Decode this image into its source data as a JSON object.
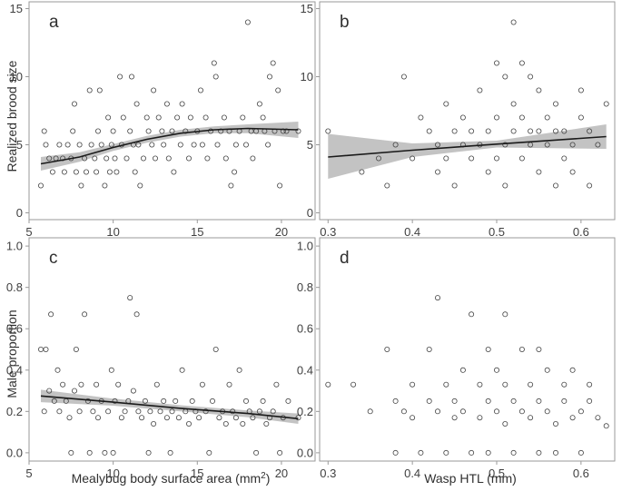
{
  "chart_data": [
    {
      "panel": "a",
      "type": "scatter",
      "xlabel": "",
      "ylabel": "Realized brood size",
      "xlim": [
        5,
        22
      ],
      "ylim": [
        -0.5,
        15.5
      ],
      "xticks": [
        5,
        10,
        15,
        20
      ],
      "yticks": [
        0,
        5,
        10,
        15
      ],
      "points": [
        [
          5.7,
          2
        ],
        [
          5.9,
          6
        ],
        [
          6.0,
          5
        ],
        [
          6.2,
          4
        ],
        [
          6.4,
          3
        ],
        [
          6.6,
          4
        ],
        [
          6.8,
          5
        ],
        [
          7.0,
          4
        ],
        [
          7.1,
          3
        ],
        [
          7.3,
          5
        ],
        [
          7.5,
          4
        ],
        [
          7.6,
          6
        ],
        [
          7.7,
          8
        ],
        [
          7.8,
          3
        ],
        [
          8.0,
          5
        ],
        [
          8.1,
          2
        ],
        [
          8.3,
          4
        ],
        [
          8.4,
          3
        ],
        [
          8.6,
          9
        ],
        [
          8.7,
          5
        ],
        [
          8.9,
          4
        ],
        [
          9.0,
          3
        ],
        [
          9.1,
          6
        ],
        [
          9.2,
          9
        ],
        [
          9.3,
          5
        ],
        [
          9.5,
          2
        ],
        [
          9.6,
          4
        ],
        [
          9.7,
          7
        ],
        [
          9.8,
          3
        ],
        [
          9.9,
          5
        ],
        [
          10.0,
          6
        ],
        [
          10.1,
          4
        ],
        [
          10.2,
          3
        ],
        [
          10.4,
          10
        ],
        [
          10.5,
          5
        ],
        [
          10.6,
          7
        ],
        [
          10.8,
          4
        ],
        [
          11.0,
          6
        ],
        [
          11.1,
          10
        ],
        [
          11.2,
          5
        ],
        [
          11.3,
          3
        ],
        [
          11.4,
          8
        ],
        [
          11.5,
          5
        ],
        [
          11.6,
          2
        ],
        [
          11.8,
          4
        ],
        [
          12.0,
          7
        ],
        [
          12.1,
          6
        ],
        [
          12.3,
          5
        ],
        [
          12.4,
          9
        ],
        [
          12.5,
          4
        ],
        [
          12.7,
          7
        ],
        [
          12.9,
          6
        ],
        [
          13.0,
          5
        ],
        [
          13.2,
          8
        ],
        [
          13.3,
          4
        ],
        [
          13.5,
          6
        ],
        [
          13.6,
          3
        ],
        [
          13.8,
          7
        ],
        [
          14.0,
          5
        ],
        [
          14.1,
          8
        ],
        [
          14.3,
          6
        ],
        [
          14.5,
          4
        ],
        [
          14.6,
          7
        ],
        [
          14.8,
          5
        ],
        [
          15.0,
          6
        ],
        [
          15.2,
          9
        ],
        [
          15.3,
          5
        ],
        [
          15.5,
          7
        ],
        [
          15.6,
          4
        ],
        [
          15.8,
          6
        ],
        [
          16.0,
          11
        ],
        [
          16.1,
          10
        ],
        [
          16.2,
          5
        ],
        [
          16.4,
          6
        ],
        [
          16.6,
          7
        ],
        [
          16.7,
          4
        ],
        [
          16.9,
          6
        ],
        [
          17.0,
          2
        ],
        [
          17.2,
          3
        ],
        [
          17.3,
          5
        ],
        [
          17.5,
          6
        ],
        [
          17.7,
          7
        ],
        [
          17.9,
          5
        ],
        [
          18.0,
          14
        ],
        [
          18.2,
          6
        ],
        [
          18.3,
          4
        ],
        [
          18.5,
          6
        ],
        [
          18.7,
          8
        ],
        [
          18.9,
          7
        ],
        [
          19.0,
          6
        ],
        [
          19.2,
          5
        ],
        [
          19.3,
          10
        ],
        [
          19.5,
          11
        ],
        [
          19.6,
          6
        ],
        [
          19.8,
          9
        ],
        [
          19.9,
          2
        ],
        [
          20.1,
          6
        ],
        [
          20.3,
          6
        ],
        [
          21.0,
          6
        ]
      ],
      "trend": [
        [
          5.7,
          3.6
        ],
        [
          8,
          4.1
        ],
        [
          10,
          4.8
        ],
        [
          12,
          5.4
        ],
        [
          14,
          5.85
        ],
        [
          16,
          6.1
        ],
        [
          18,
          6.2
        ],
        [
          21,
          6.1
        ]
      ],
      "ci_upper": [
        [
          5.7,
          4.1
        ],
        [
          8,
          4.45
        ],
        [
          10,
          5.05
        ],
        [
          12,
          5.65
        ],
        [
          14,
          6.1
        ],
        [
          16,
          6.35
        ],
        [
          18,
          6.5
        ],
        [
          21,
          6.7
        ]
      ],
      "ci_lower": [
        [
          5.7,
          3.1
        ],
        [
          8,
          3.75
        ],
        [
          10,
          4.55
        ],
        [
          12,
          5.15
        ],
        [
          14,
          5.6
        ],
        [
          16,
          5.85
        ],
        [
          18,
          5.85
        ],
        [
          21,
          5.5
        ]
      ]
    },
    {
      "panel": "b",
      "type": "scatter",
      "xlabel": "",
      "ylabel": "",
      "xlim": [
        0.29,
        0.64
      ],
      "ylim": [
        -0.5,
        15.5
      ],
      "xticks": [
        0.3,
        0.4,
        0.5,
        0.6
      ],
      "yticks": [
        0,
        5,
        10,
        15
      ],
      "points": [
        [
          0.3,
          6
        ],
        [
          0.34,
          3
        ],
        [
          0.36,
          4
        ],
        [
          0.37,
          2
        ],
        [
          0.38,
          5
        ],
        [
          0.39,
          10
        ],
        [
          0.4,
          4
        ],
        [
          0.41,
          7
        ],
        [
          0.42,
          6
        ],
        [
          0.43,
          5
        ],
        [
          0.43,
          3
        ],
        [
          0.44,
          8
        ],
        [
          0.44,
          4
        ],
        [
          0.45,
          6
        ],
        [
          0.45,
          2
        ],
        [
          0.46,
          7
        ],
        [
          0.46,
          5
        ],
        [
          0.47,
          4
        ],
        [
          0.47,
          6
        ],
        [
          0.48,
          5
        ],
        [
          0.48,
          9
        ],
        [
          0.49,
          3
        ],
        [
          0.49,
          6
        ],
        [
          0.5,
          7
        ],
        [
          0.5,
          4
        ],
        [
          0.5,
          11
        ],
        [
          0.51,
          5
        ],
        [
          0.51,
          2
        ],
        [
          0.51,
          10
        ],
        [
          0.52,
          6
        ],
        [
          0.52,
          14
        ],
        [
          0.52,
          8
        ],
        [
          0.53,
          4
        ],
        [
          0.53,
          7
        ],
        [
          0.53,
          11
        ],
        [
          0.54,
          5
        ],
        [
          0.54,
          6
        ],
        [
          0.54,
          10
        ],
        [
          0.55,
          3
        ],
        [
          0.55,
          9
        ],
        [
          0.55,
          6
        ],
        [
          0.56,
          7
        ],
        [
          0.56,
          5
        ],
        [
          0.57,
          2
        ],
        [
          0.57,
          6
        ],
        [
          0.57,
          8
        ],
        [
          0.58,
          4
        ],
        [
          0.58,
          6
        ],
        [
          0.59,
          5
        ],
        [
          0.59,
          3
        ],
        [
          0.6,
          7
        ],
        [
          0.6,
          9
        ],
        [
          0.61,
          6
        ],
        [
          0.61,
          2
        ],
        [
          0.62,
          5
        ],
        [
          0.63,
          8
        ]
      ],
      "trend": [
        [
          0.3,
          4.1
        ],
        [
          0.4,
          4.6
        ],
        [
          0.5,
          5.05
        ],
        [
          0.63,
          5.6
        ]
      ],
      "ci_upper": [
        [
          0.3,
          5.8
        ],
        [
          0.4,
          5.1
        ],
        [
          0.5,
          5.3
        ],
        [
          0.63,
          6.5
        ]
      ],
      "ci_lower": [
        [
          0.3,
          2.5
        ],
        [
          0.4,
          4.1
        ],
        [
          0.5,
          4.8
        ],
        [
          0.63,
          4.7
        ]
      ]
    },
    {
      "panel": "c",
      "type": "scatter",
      "xlabel": "Mealybug body surface area (mm",
      "xlabel_sup": "2",
      "xlabel_end": ")",
      "ylabel": "Male proportion",
      "xlim": [
        5,
        22
      ],
      "ylim": [
        -0.04,
        1.04
      ],
      "xticks": [
        5,
        10,
        15,
        20
      ],
      "yticks": [
        0.0,
        0.2,
        0.4,
        0.6,
        0.8,
        1.0
      ],
      "points": [
        [
          5.7,
          0.5
        ],
        [
          5.9,
          0.2
        ],
        [
          6.0,
          0.5
        ],
        [
          6.2,
          0.3
        ],
        [
          6.3,
          0.67
        ],
        [
          6.5,
          0.25
        ],
        [
          6.7,
          0.4
        ],
        [
          6.8,
          0.2
        ],
        [
          7.0,
          0.33
        ],
        [
          7.2,
          0.25
        ],
        [
          7.4,
          0.17
        ],
        [
          7.5,
          0.0
        ],
        [
          7.7,
          0.3
        ],
        [
          7.8,
          0.5
        ],
        [
          8.0,
          0.2
        ],
        [
          8.1,
          0.33
        ],
        [
          8.3,
          0.67
        ],
        [
          8.5,
          0.25
        ],
        [
          8.6,
          0.0
        ],
        [
          8.8,
          0.2
        ],
        [
          9.0,
          0.33
        ],
        [
          9.1,
          0.17
        ],
        [
          9.3,
          0.25
        ],
        [
          9.5,
          0.0
        ],
        [
          9.7,
          0.2
        ],
        [
          9.9,
          0.4
        ],
        [
          10.0,
          0.0
        ],
        [
          10.1,
          0.25
        ],
        [
          10.3,
          0.33
        ],
        [
          10.5,
          0.17
        ],
        [
          10.7,
          0.2
        ],
        [
          10.9,
          0.25
        ],
        [
          11.0,
          0.75
        ],
        [
          11.2,
          0.3
        ],
        [
          11.4,
          0.67
        ],
        [
          11.5,
          0.2
        ],
        [
          11.7,
          0.17
        ],
        [
          11.9,
          0.25
        ],
        [
          12.1,
          0.0
        ],
        [
          12.2,
          0.2
        ],
        [
          12.4,
          0.14
        ],
        [
          12.6,
          0.33
        ],
        [
          12.8,
          0.2
        ],
        [
          13.0,
          0.25
        ],
        [
          13.2,
          0.17
        ],
        [
          13.4,
          0.0
        ],
        [
          13.5,
          0.2
        ],
        [
          13.7,
          0.25
        ],
        [
          13.9,
          0.17
        ],
        [
          14.1,
          0.4
        ],
        [
          14.3,
          0.2
        ],
        [
          14.5,
          0.14
        ],
        [
          14.7,
          0.25
        ],
        [
          14.9,
          0.2
        ],
        [
          15.1,
          0.17
        ],
        [
          15.3,
          0.33
        ],
        [
          15.5,
          0.2
        ],
        [
          15.7,
          0.0
        ],
        [
          15.9,
          0.25
        ],
        [
          16.1,
          0.5
        ],
        [
          16.3,
          0.17
        ],
        [
          16.5,
          0.2
        ],
        [
          16.7,
          0.14
        ],
        [
          16.9,
          0.33
        ],
        [
          17.1,
          0.2
        ],
        [
          17.3,
          0.17
        ],
        [
          17.5,
          0.4
        ],
        [
          17.7,
          0.14
        ],
        [
          17.9,
          0.25
        ],
        [
          18.1,
          0.2
        ],
        [
          18.3,
          0.17
        ],
        [
          18.5,
          0.0
        ],
        [
          18.7,
          0.2
        ],
        [
          18.9,
          0.25
        ],
        [
          19.1,
          0.14
        ],
        [
          19.3,
          0.17
        ],
        [
          19.5,
          0.2
        ],
        [
          19.7,
          0.33
        ],
        [
          19.9,
          0.0
        ],
        [
          20.1,
          0.17
        ],
        [
          20.4,
          0.25
        ],
        [
          21.0,
          0.17
        ]
      ],
      "trend": [
        [
          5.7,
          0.275
        ],
        [
          10,
          0.245
        ],
        [
          14,
          0.215
        ],
        [
          18,
          0.19
        ],
        [
          21,
          0.165
        ]
      ],
      "ci_upper": [
        [
          5.7,
          0.305
        ],
        [
          10,
          0.262
        ],
        [
          14,
          0.23
        ],
        [
          18,
          0.205
        ],
        [
          21,
          0.19
        ]
      ],
      "ci_lower": [
        [
          5.7,
          0.245
        ],
        [
          10,
          0.228
        ],
        [
          14,
          0.2
        ],
        [
          18,
          0.172
        ],
        [
          21,
          0.14
        ]
      ]
    },
    {
      "panel": "d",
      "type": "scatter",
      "xlabel": "Wasp HTL (mm)",
      "ylabel": "",
      "xlim": [
        0.29,
        0.64
      ],
      "ylim": [
        -0.04,
        1.04
      ],
      "xticks": [
        0.3,
        0.4,
        0.5,
        0.6
      ],
      "yticks": [
        0.0,
        0.2,
        0.4,
        0.6,
        0.8,
        1.0
      ],
      "points": [
        [
          0.3,
          0.33
        ],
        [
          0.33,
          0.33
        ],
        [
          0.35,
          0.2
        ],
        [
          0.37,
          0.5
        ],
        [
          0.38,
          0.25
        ],
        [
          0.38,
          0.0
        ],
        [
          0.39,
          0.2
        ],
        [
          0.4,
          0.17
        ],
        [
          0.4,
          0.33
        ],
        [
          0.41,
          0.0
        ],
        [
          0.42,
          0.25
        ],
        [
          0.42,
          0.5
        ],
        [
          0.43,
          0.75
        ],
        [
          0.43,
          0.2
        ],
        [
          0.44,
          0.33
        ],
        [
          0.44,
          0.0
        ],
        [
          0.45,
          0.17
        ],
        [
          0.45,
          0.25
        ],
        [
          0.46,
          0.4
        ],
        [
          0.46,
          0.2
        ],
        [
          0.47,
          0.67
        ],
        [
          0.47,
          0.0
        ],
        [
          0.48,
          0.33
        ],
        [
          0.48,
          0.17
        ],
        [
          0.49,
          0.25
        ],
        [
          0.49,
          0.5
        ],
        [
          0.49,
          0.0
        ],
        [
          0.5,
          0.2
        ],
        [
          0.5,
          0.4
        ],
        [
          0.51,
          0.14
        ],
        [
          0.51,
          0.33
        ],
        [
          0.51,
          0.67
        ],
        [
          0.52,
          0.25
        ],
        [
          0.52,
          0.0
        ],
        [
          0.53,
          0.2
        ],
        [
          0.53,
          0.5
        ],
        [
          0.54,
          0.17
        ],
        [
          0.54,
          0.33
        ],
        [
          0.55,
          0.0
        ],
        [
          0.55,
          0.25
        ],
        [
          0.55,
          0.5
        ],
        [
          0.56,
          0.2
        ],
        [
          0.56,
          0.4
        ],
        [
          0.57,
          0.14
        ],
        [
          0.57,
          0.0
        ],
        [
          0.58,
          0.25
        ],
        [
          0.58,
          0.33
        ],
        [
          0.59,
          0.17
        ],
        [
          0.59,
          0.4
        ],
        [
          0.6,
          0.2
        ],
        [
          0.6,
          0.0
        ],
        [
          0.61,
          0.25
        ],
        [
          0.61,
          0.33
        ],
        [
          0.62,
          0.17
        ],
        [
          0.63,
          0.13
        ]
      ]
    }
  ]
}
